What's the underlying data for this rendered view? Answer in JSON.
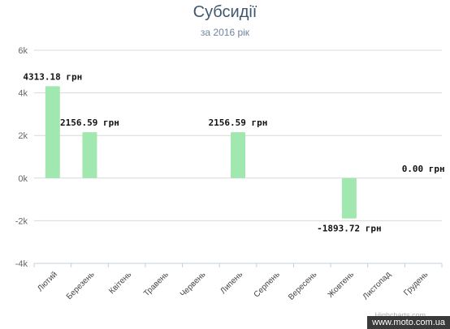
{
  "chart_data": {
    "type": "bar",
    "title": "Субсидії",
    "subtitle": "за 2016 рік",
    "categories": [
      "Лютий",
      "Березень",
      "Квітень",
      "Травень",
      "Червень",
      "Липень",
      "Серпень",
      "Вересень",
      "Жовтень",
      "Листопад",
      "Грудень"
    ],
    "values": [
      4313.18,
      2156.59,
      null,
      null,
      null,
      2156.59,
      null,
      null,
      -1893.72,
      null,
      0.0
    ],
    "data_labels": [
      "4313.18 грн",
      "2156.59 грн",
      "",
      "",
      "",
      "2156.59 грн",
      "",
      "",
      "-1893.72 грн",
      "",
      "0.00 грн"
    ],
    "ylim": [
      -4000,
      6000
    ],
    "yticks": [
      6000,
      4000,
      2000,
      0,
      -2000,
      -4000
    ],
    "ytick_labels": [
      "6k",
      "4k",
      "2k",
      "0k",
      "-2k",
      "-4k"
    ],
    "grid": true,
    "bar_color": "#a0e8b0"
  },
  "credits": "Highcharts.com",
  "watermark": "www.moto.com.ua"
}
